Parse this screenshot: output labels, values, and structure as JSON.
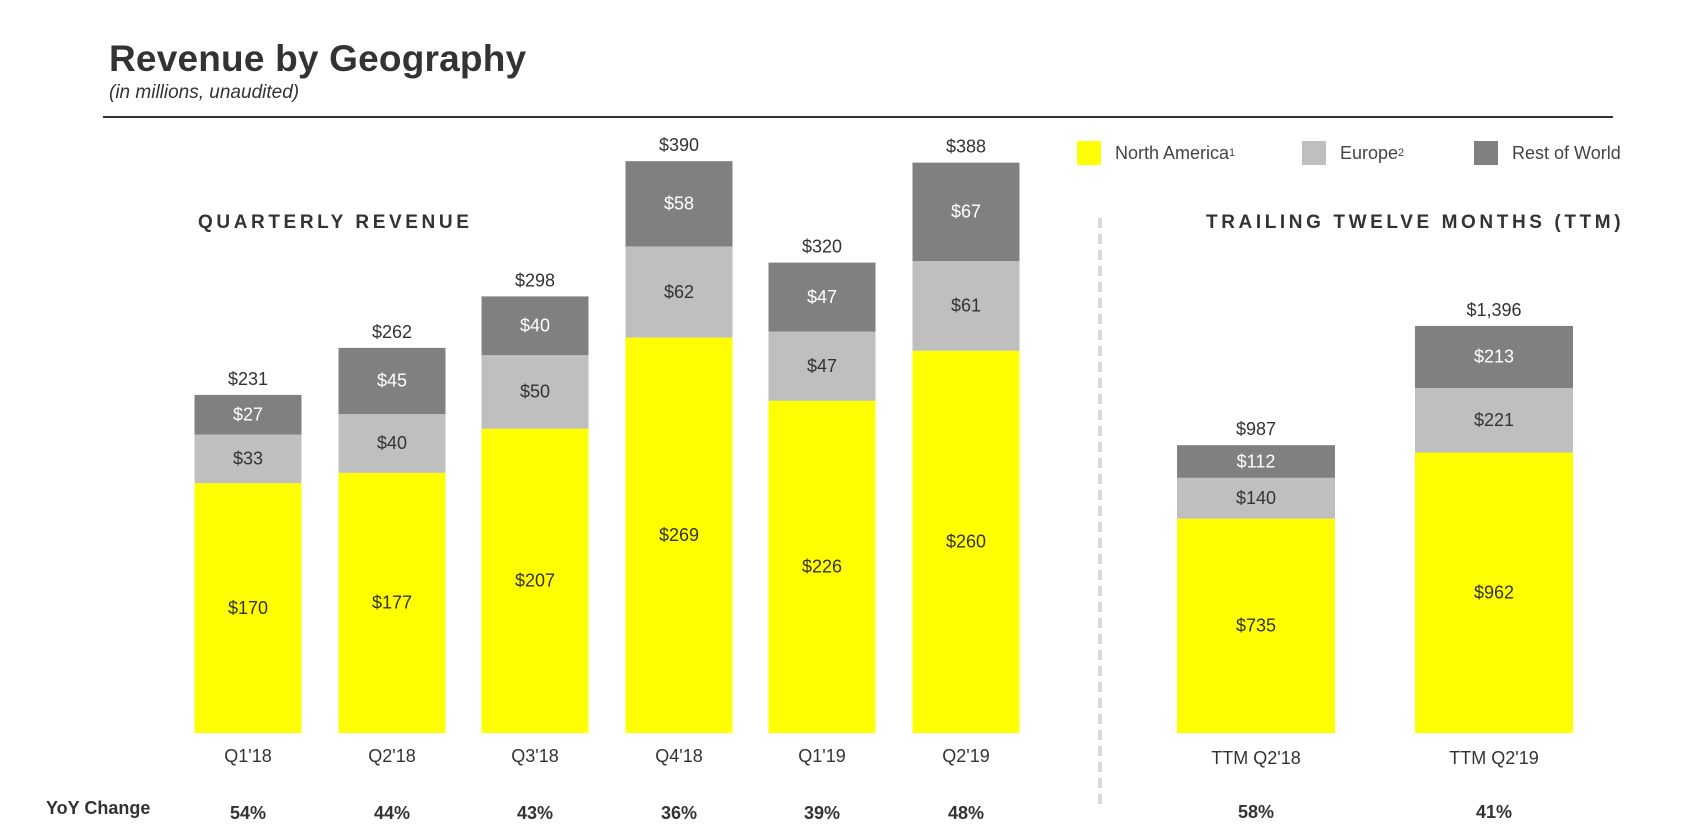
{
  "header": {
    "title": "Revenue by Geography",
    "subtitle": "(in millions, unaudited)"
  },
  "legend": [
    {
      "label": "North America",
      "sup": "1",
      "color": "#ffff00"
    },
    {
      "label": "Europe",
      "sup": "2",
      "color": "#bfbfbf"
    },
    {
      "label": "Rest of World",
      "sup": "",
      "color": "#808080"
    }
  ],
  "sections": {
    "quarterly": "QUARTERLY REVENUE",
    "ttm": "TRAILING TWELVE MONTHS (TTM)"
  },
  "yoy_title": "YoY Change",
  "chart_data": [
    {
      "type": "bar",
      "stacked": true,
      "title": "QUARTERLY REVENUE",
      "categories": [
        "Q1'18",
        "Q2'18",
        "Q3'18",
        "Q4'18",
        "Q1'19",
        "Q2'19"
      ],
      "series": [
        {
          "name": "North America",
          "values": [
            170,
            177,
            207,
            269,
            226,
            260
          ],
          "labels": [
            "$170",
            "$177",
            "$207",
            "$269",
            "$226",
            "$260"
          ],
          "color": "#ffff00"
        },
        {
          "name": "Europe",
          "values": [
            33,
            40,
            50,
            62,
            47,
            61
          ],
          "labels": [
            "$33",
            "$40",
            "$50",
            "$62",
            "$47",
            "$61"
          ],
          "color": "#bfbfbf"
        },
        {
          "name": "Rest of World",
          "values": [
            27,
            45,
            40,
            58,
            47,
            67
          ],
          "labels": [
            "$27",
            "$45",
            "$40",
            "$58",
            "$47",
            "$67"
          ],
          "color": "#808080"
        }
      ],
      "totals": [
        "$231",
        "$262",
        "$298",
        "$390",
        "$320",
        "$388"
      ],
      "yoy": [
        "54%",
        "44%",
        "43%",
        "36%",
        "39%",
        "48%"
      ]
    },
    {
      "type": "bar",
      "stacked": true,
      "title": "TRAILING TWELVE MONTHS (TTM)",
      "categories": [
        "TTM Q2'18",
        "TTM Q2'19"
      ],
      "series": [
        {
          "name": "North America",
          "values": [
            735,
            962
          ],
          "labels": [
            "$735",
            "$962"
          ],
          "color": "#ffff00"
        },
        {
          "name": "Europe",
          "values": [
            140,
            221
          ],
          "labels": [
            "$140",
            "$221"
          ],
          "color": "#bfbfbf"
        },
        {
          "name": "Rest of World",
          "values": [
            112,
            213
          ],
          "labels": [
            "$112",
            "$213"
          ],
          "color": "#808080"
        }
      ],
      "totals": [
        "$987",
        "$1,396"
      ],
      "yoy": [
        "58%",
        "41%"
      ]
    }
  ]
}
